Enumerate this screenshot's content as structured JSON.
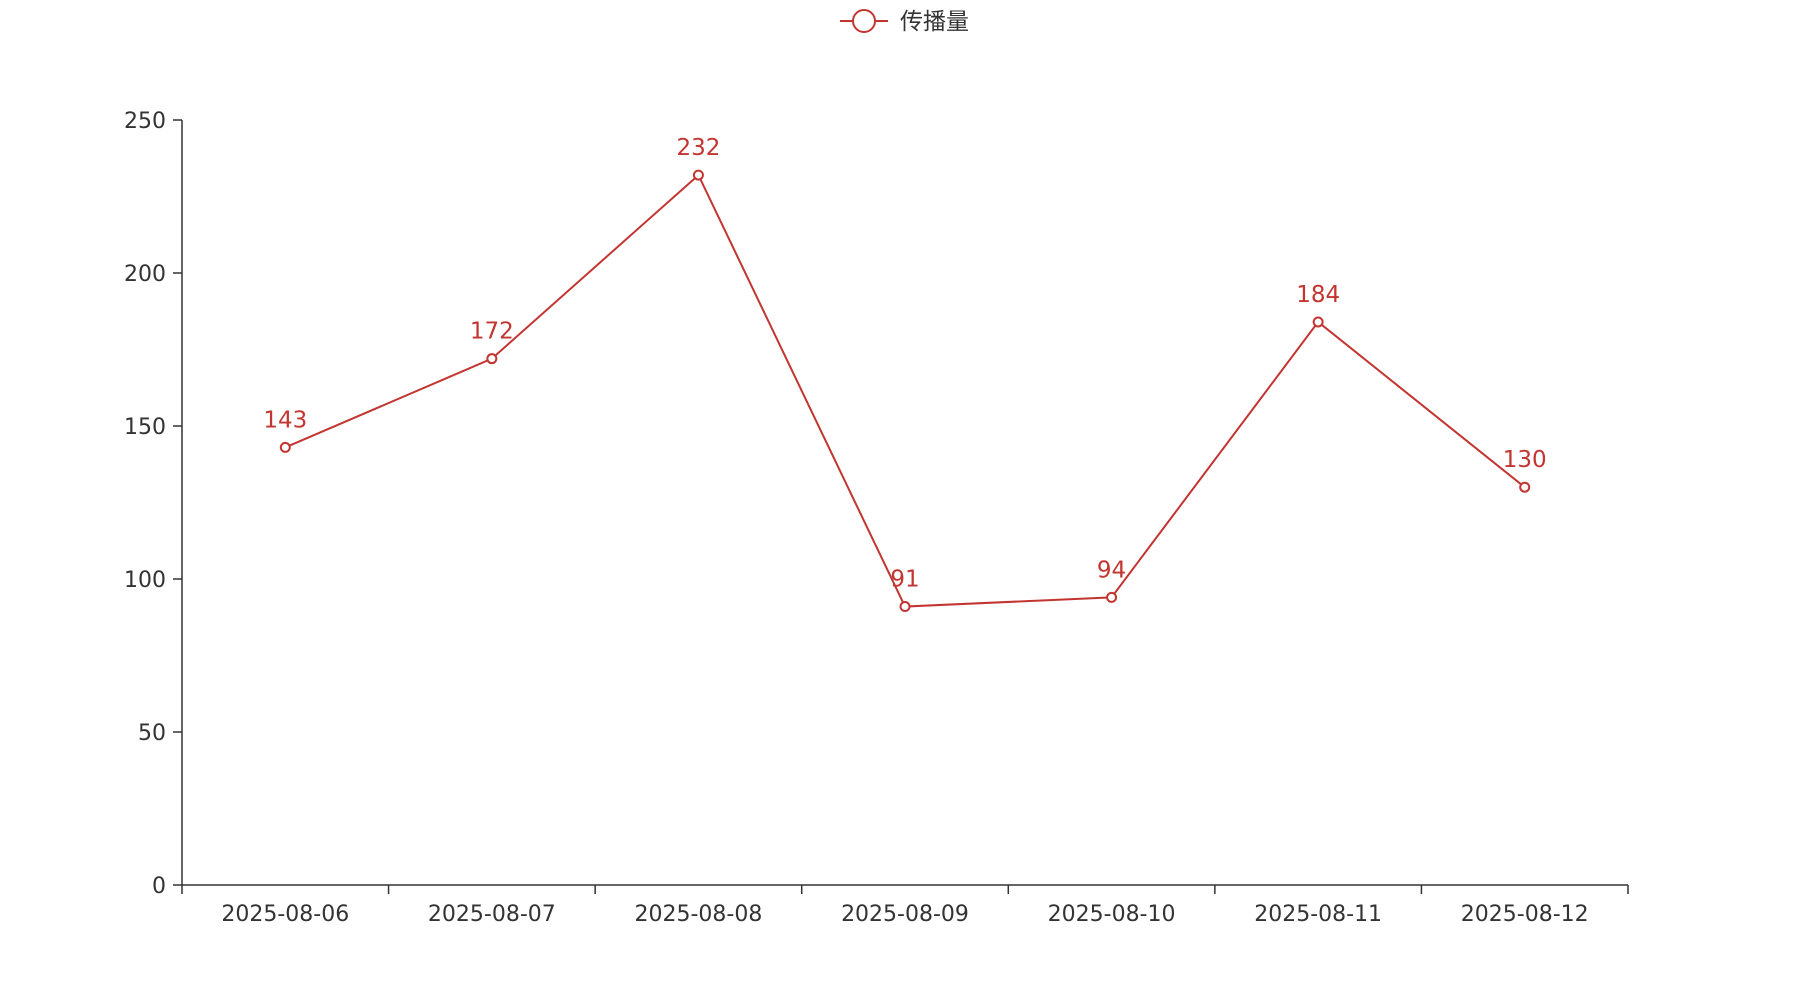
{
  "chart_data": {
    "type": "line",
    "categories": [
      "2025-08-06",
      "2025-08-07",
      "2025-08-08",
      "2025-08-09",
      "2025-08-10",
      "2025-08-11",
      "2025-08-12"
    ],
    "series": [
      {
        "name": "传播量",
        "values": [
          143,
          172,
          232,
          91,
          94,
          184,
          130
        ]
      }
    ],
    "title": "",
    "xlabel": "",
    "ylabel": "",
    "ylim": [
      0,
      250
    ],
    "yticks": [
      "0",
      "50",
      "100",
      "150",
      "200",
      "250"
    ],
    "grid": false,
    "legend": "top-center",
    "line_color": "#c23531",
    "axis_color": "#333333"
  }
}
